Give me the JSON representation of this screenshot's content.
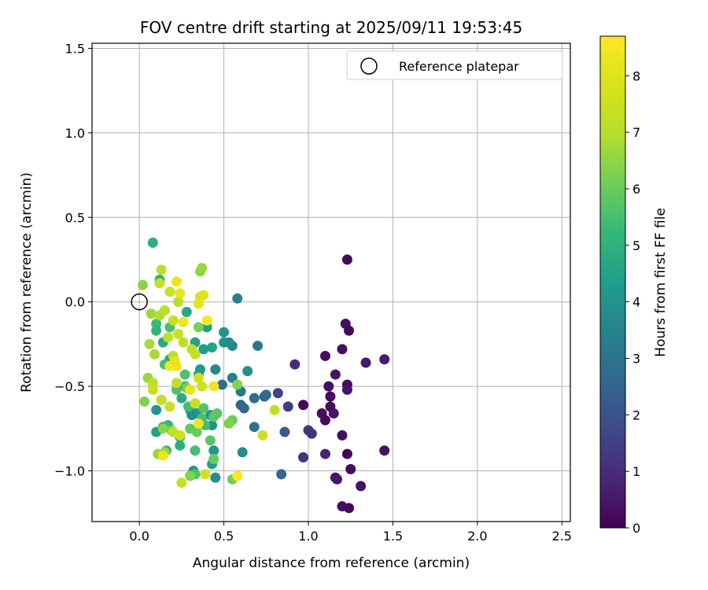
{
  "chart_data": {
    "type": "scatter",
    "title": "FOV centre drift starting at 2025/09/11 19:53:45",
    "xlabel": "Angular distance from reference (arcmin)",
    "ylabel": "Rotation from reference (arcmin)",
    "xlim": [
      -0.28,
      2.55
    ],
    "ylim": [
      -1.3,
      1.53
    ],
    "xticks": [
      0.0,
      0.5,
      1.0,
      1.5,
      2.0,
      2.5
    ],
    "xtick_labels": [
      "0.0",
      "0.5",
      "1.0",
      "1.5",
      "2.0",
      "2.5"
    ],
    "yticks": [
      -1.0,
      -0.5,
      0.0,
      0.5,
      1.0,
      1.5
    ],
    "ytick_labels": [
      "−1.0",
      "−0.5",
      "0.0",
      "0.5",
      "1.0",
      "1.5"
    ],
    "grid": true,
    "legend": {
      "placement": "top-right",
      "entries": [
        "Reference platepar"
      ]
    },
    "colorbar": {
      "label": "Hours from first FF file",
      "colormap": "viridis",
      "range": [
        0,
        8.7
      ],
      "ticks": [
        0,
        1,
        2,
        3,
        4,
        5,
        6,
        7,
        8
      ],
      "tick_labels": [
        "0",
        "1",
        "2",
        "3",
        "4",
        "5",
        "6",
        "7",
        "8"
      ]
    },
    "reference_point": {
      "name": "Reference platepar",
      "x": 0.0,
      "y": 0.0
    },
    "points": [
      {
        "x": 0.97,
        "y": -0.61,
        "hours": 0.1
      },
      {
        "x": 1.1,
        "y": -0.32,
        "hours": 0.3
      },
      {
        "x": 1.22,
        "y": -0.13,
        "hours": 0.3
      },
      {
        "x": 1.23,
        "y": 0.25,
        "hours": 0.2
      },
      {
        "x": 1.24,
        "y": -0.17,
        "hours": 0.2
      },
      {
        "x": 1.2,
        "y": -0.28,
        "hours": 0.3
      },
      {
        "x": 1.16,
        "y": -0.43,
        "hours": 0.4
      },
      {
        "x": 1.12,
        "y": -0.5,
        "hours": 0.3
      },
      {
        "x": 1.13,
        "y": -0.56,
        "hours": 0.2
      },
      {
        "x": 1.23,
        "y": -0.49,
        "hours": 0.3
      },
      {
        "x": 1.23,
        "y": -0.52,
        "hours": 0.4
      },
      {
        "x": 1.13,
        "y": -0.62,
        "hours": 0.3
      },
      {
        "x": 1.15,
        "y": -0.66,
        "hours": 0.4
      },
      {
        "x": 1.08,
        "y": -0.66,
        "hours": 0.3
      },
      {
        "x": 1.1,
        "y": -0.7,
        "hours": 0.2
      },
      {
        "x": 1.2,
        "y": -0.79,
        "hours": 0.3
      },
      {
        "x": 1.23,
        "y": -0.9,
        "hours": 0.1
      },
      {
        "x": 1.25,
        "y": -0.99,
        "hours": 0.3
      },
      {
        "x": 1.16,
        "y": -1.04,
        "hours": 0.4
      },
      {
        "x": 1.17,
        "y": -1.05,
        "hours": 0.5
      },
      {
        "x": 1.31,
        "y": -1.09,
        "hours": 0.4
      },
      {
        "x": 1.2,
        "y": -1.21,
        "hours": 0.3
      },
      {
        "x": 1.24,
        "y": -1.22,
        "hours": 0.2
      },
      {
        "x": 1.34,
        "y": -0.36,
        "hours": 0.5
      },
      {
        "x": 1.45,
        "y": -0.34,
        "hours": 0.6
      },
      {
        "x": 1.45,
        "y": -0.88,
        "hours": 0.4
      },
      {
        "x": 1.1,
        "y": -0.9,
        "hours": 0.8
      },
      {
        "x": 0.92,
        "y": -0.37,
        "hours": 1.0
      },
      {
        "x": 1.0,
        "y": -0.76,
        "hours": 1.3
      },
      {
        "x": 1.02,
        "y": -0.78,
        "hours": 1.1
      },
      {
        "x": 0.97,
        "y": -0.92,
        "hours": 1.2
      },
      {
        "x": 0.88,
        "y": -0.62,
        "hours": 1.4
      },
      {
        "x": 0.82,
        "y": -0.54,
        "hours": 1.6
      },
      {
        "x": 0.86,
        "y": -0.77,
        "hours": 2.2
      },
      {
        "x": 0.84,
        "y": -1.02,
        "hours": 2.6
      },
      {
        "x": 0.74,
        "y": -0.56,
        "hours": 2.4
      },
      {
        "x": 0.75,
        "y": -0.55,
        "hours": 2.7
      },
      {
        "x": 0.68,
        "y": -0.57,
        "hours": 2.8
      },
      {
        "x": 0.68,
        "y": -0.74,
        "hours": 3.0
      },
      {
        "x": 0.7,
        "y": -0.26,
        "hours": 3.1
      },
      {
        "x": 0.6,
        "y": -0.61,
        "hours": 2.5
      },
      {
        "x": 0.62,
        "y": -0.63,
        "hours": 2.7
      },
      {
        "x": 0.6,
        "y": -0.53,
        "hours": 3.0
      },
      {
        "x": 0.55,
        "y": -0.45,
        "hours": 3.3
      },
      {
        "x": 0.55,
        "y": -0.26,
        "hours": 3.6
      },
      {
        "x": 0.58,
        "y": 0.02,
        "hours": 3.5
      },
      {
        "x": 0.64,
        "y": -0.41,
        "hours": 3.9
      },
      {
        "x": 0.61,
        "y": -0.89,
        "hours": 3.8
      },
      {
        "x": 0.5,
        "y": -0.24,
        "hours": 4.0
      },
      {
        "x": 0.53,
        "y": -0.24,
        "hours": 3.8
      },
      {
        "x": 0.49,
        "y": -0.49,
        "hours": 2.9
      },
      {
        "x": 0.5,
        "y": -0.18,
        "hours": 4.1
      },
      {
        "x": 0.45,
        "y": -0.4,
        "hours": 3.6
      },
      {
        "x": 0.45,
        "y": -1.04,
        "hours": 3.8
      },
      {
        "x": 0.44,
        "y": -0.88,
        "hours": 4.1
      },
      {
        "x": 0.43,
        "y": -0.73,
        "hours": 3.9
      },
      {
        "x": 0.42,
        "y": -0.67,
        "hours": 4.2
      },
      {
        "x": 0.43,
        "y": -0.27,
        "hours": 4.6
      },
      {
        "x": 0.4,
        "y": -0.15,
        "hours": 4.4
      },
      {
        "x": 0.38,
        "y": -0.28,
        "hours": 4.4
      },
      {
        "x": 0.36,
        "y": -0.4,
        "hours": 4.2
      },
      {
        "x": 0.35,
        "y": -0.43,
        "hours": 4.4
      },
      {
        "x": 0.34,
        "y": -0.66,
        "hours": 4.3
      },
      {
        "x": 0.3,
        "y": -0.64,
        "hours": 4.4
      },
      {
        "x": 0.31,
        "y": -0.67,
        "hours": 3.9
      },
      {
        "x": 0.32,
        "y": -1.0,
        "hours": 4.1
      },
      {
        "x": 0.43,
        "y": -0.96,
        "hours": 4.4
      },
      {
        "x": 0.28,
        "y": -0.06,
        "hours": 4.7
      },
      {
        "x": 0.33,
        "y": -0.24,
        "hours": 4.5
      },
      {
        "x": 0.25,
        "y": -0.57,
        "hours": 4.8
      },
      {
        "x": 0.24,
        "y": -0.8,
        "hours": 4.9
      },
      {
        "x": 0.24,
        "y": -0.85,
        "hours": 4.9
      },
      {
        "x": 0.18,
        "y": -0.34,
        "hours": 4.6
      },
      {
        "x": 0.14,
        "y": -0.24,
        "hours": 4.7
      },
      {
        "x": 0.12,
        "y": 0.13,
        "hours": 4.9
      },
      {
        "x": 0.08,
        "y": 0.35,
        "hours": 4.9
      },
      {
        "x": 0.13,
        "y": -0.58,
        "hours": 4.3
      },
      {
        "x": 0.1,
        "y": -0.64,
        "hours": 4.1
      },
      {
        "x": 0.1,
        "y": -0.77,
        "hours": 4.5
      },
      {
        "x": 0.14,
        "y": -0.74,
        "hours": 5.0
      },
      {
        "x": 0.16,
        "y": -0.88,
        "hours": 5.2
      },
      {
        "x": 0.17,
        "y": -0.73,
        "hours": 5.2
      },
      {
        "x": 0.1,
        "y": -0.13,
        "hours": 5.3
      },
      {
        "x": 0.1,
        "y": -0.17,
        "hours": 5.1
      },
      {
        "x": 0.15,
        "y": -0.37,
        "hours": 5.5
      },
      {
        "x": 0.18,
        "y": -0.15,
        "hours": 5.5
      },
      {
        "x": 0.22,
        "y": -0.52,
        "hours": 5.6
      },
      {
        "x": 0.27,
        "y": -0.5,
        "hours": 5.3
      },
      {
        "x": 0.27,
        "y": -0.43,
        "hours": 5.6
      },
      {
        "x": 0.29,
        "y": -0.62,
        "hours": 5.4
      },
      {
        "x": 0.33,
        "y": -0.88,
        "hours": 5.4
      },
      {
        "x": 0.33,
        "y": -1.02,
        "hours": 5.6
      },
      {
        "x": 0.38,
        "y": -0.63,
        "hours": 5.7
      },
      {
        "x": 0.37,
        "y": -0.69,
        "hours": 5.5
      },
      {
        "x": 0.39,
        "y": -0.73,
        "hours": 5.4
      },
      {
        "x": 0.42,
        "y": -0.82,
        "hours": 5.8
      },
      {
        "x": 0.44,
        "y": -0.68,
        "hours": 5.8
      },
      {
        "x": 0.46,
        "y": -0.66,
        "hours": 5.8
      },
      {
        "x": 0.44,
        "y": -0.93,
        "hours": 6.0
      },
      {
        "x": 0.55,
        "y": -0.7,
        "hours": 6.0
      },
      {
        "x": 0.53,
        "y": -0.72,
        "hours": 6.3
      },
      {
        "x": 0.55,
        "y": -1.05,
        "hours": 6.1
      },
      {
        "x": 0.58,
        "y": -0.49,
        "hours": 6.3
      },
      {
        "x": 0.36,
        "y": 0.18,
        "hours": 6.5
      },
      {
        "x": 0.37,
        "y": 0.2,
        "hours": 6.6
      },
      {
        "x": 0.35,
        "y": -0.15,
        "hours": 6.2
      },
      {
        "x": 0.28,
        "y": -0.51,
        "hours": 6.2
      },
      {
        "x": 0.3,
        "y": -0.75,
        "hours": 5.9
      },
      {
        "x": 0.34,
        "y": -0.77,
        "hours": 6.0
      },
      {
        "x": 0.3,
        "y": -1.03,
        "hours": 6.3
      },
      {
        "x": 0.19,
        "y": -0.76,
        "hours": 6.1
      },
      {
        "x": 0.14,
        "y": -0.75,
        "hours": 6.4
      },
      {
        "x": 0.15,
        "y": -0.89,
        "hours": 6.5
      },
      {
        "x": 0.11,
        "y": -0.9,
        "hours": 6.6
      },
      {
        "x": 0.05,
        "y": -0.45,
        "hours": 6.6
      },
      {
        "x": 0.07,
        "y": -0.07,
        "hours": 6.7
      },
      {
        "x": 0.02,
        "y": 0.1,
        "hours": 6.4
      },
      {
        "x": 0.03,
        "y": -0.59,
        "hours": 6.3
      },
      {
        "x": 0.06,
        "y": -0.25,
        "hours": 6.8
      },
      {
        "x": 0.09,
        "y": -0.31,
        "hours": 6.8
      },
      {
        "x": 0.12,
        "y": -0.08,
        "hours": 6.9
      },
      {
        "x": 0.15,
        "y": -0.05,
        "hours": 7.0
      },
      {
        "x": 0.17,
        "y": -0.21,
        "hours": 7.2
      },
      {
        "x": 0.13,
        "y": 0.19,
        "hours": 7.1
      },
      {
        "x": 0.12,
        "y": 0.11,
        "hours": 7.3
      },
      {
        "x": 0.18,
        "y": 0.06,
        "hours": 7.4
      },
      {
        "x": 0.23,
        "y": 0.0,
        "hours": 7.1
      },
      {
        "x": 0.2,
        "y": -0.11,
        "hours": 7.3
      },
      {
        "x": 0.23,
        "y": -0.19,
        "hours": 7.4
      },
      {
        "x": 0.26,
        "y": -0.24,
        "hours": 7.2
      },
      {
        "x": 0.31,
        "y": -0.28,
        "hours": 7.3
      },
      {
        "x": 0.33,
        "y": -0.31,
        "hours": 7.4
      },
      {
        "x": 0.2,
        "y": -0.32,
        "hours": 7.0
      },
      {
        "x": 0.22,
        "y": -0.48,
        "hours": 7.2
      },
      {
        "x": 0.08,
        "y": -0.48,
        "hours": 7.2
      },
      {
        "x": 0.08,
        "y": -0.52,
        "hours": 7.4
      },
      {
        "x": 0.13,
        "y": -0.58,
        "hours": 7.4
      },
      {
        "x": 0.18,
        "y": -0.62,
        "hours": 7.5
      },
      {
        "x": 0.2,
        "y": -0.77,
        "hours": 7.3
      },
      {
        "x": 0.24,
        "y": -0.79,
        "hours": 7.6
      },
      {
        "x": 0.25,
        "y": -1.07,
        "hours": 7.4
      },
      {
        "x": 0.33,
        "y": -0.6,
        "hours": 7.5
      },
      {
        "x": 0.37,
        "y": -0.5,
        "hours": 7.6
      },
      {
        "x": 0.35,
        "y": -0.45,
        "hours": 7.7
      },
      {
        "x": 0.39,
        "y": -1.02,
        "hours": 7.6
      },
      {
        "x": 0.36,
        "y": 0.03,
        "hours": 7.9
      },
      {
        "x": 0.38,
        "y": 0.04,
        "hours": 8.0
      },
      {
        "x": 0.35,
        "y": -0.01,
        "hours": 8.1
      },
      {
        "x": 0.22,
        "y": 0.12,
        "hours": 8.3
      },
      {
        "x": 0.24,
        "y": 0.05,
        "hours": 8.2
      },
      {
        "x": 0.26,
        "y": -0.12,
        "hours": 8.3
      },
      {
        "x": 0.22,
        "y": -0.38,
        "hours": 8.4
      },
      {
        "x": 0.18,
        "y": -0.38,
        "hours": 8.5
      },
      {
        "x": 0.21,
        "y": -0.35,
        "hours": 8.2
      },
      {
        "x": 0.3,
        "y": -0.52,
        "hours": 8.2
      },
      {
        "x": 0.35,
        "y": -0.72,
        "hours": 8.4
      },
      {
        "x": 0.4,
        "y": -0.11,
        "hours": 8.6
      },
      {
        "x": 0.44,
        "y": -0.5,
        "hours": 8.4
      },
      {
        "x": 0.14,
        "y": -0.91,
        "hours": 8.3
      },
      {
        "x": 0.58,
        "y": -1.03,
        "hours": 8.6
      },
      {
        "x": 0.73,
        "y": -0.79,
        "hours": 7.6
      },
      {
        "x": 0.8,
        "y": -0.64,
        "hours": 7.2
      }
    ]
  }
}
